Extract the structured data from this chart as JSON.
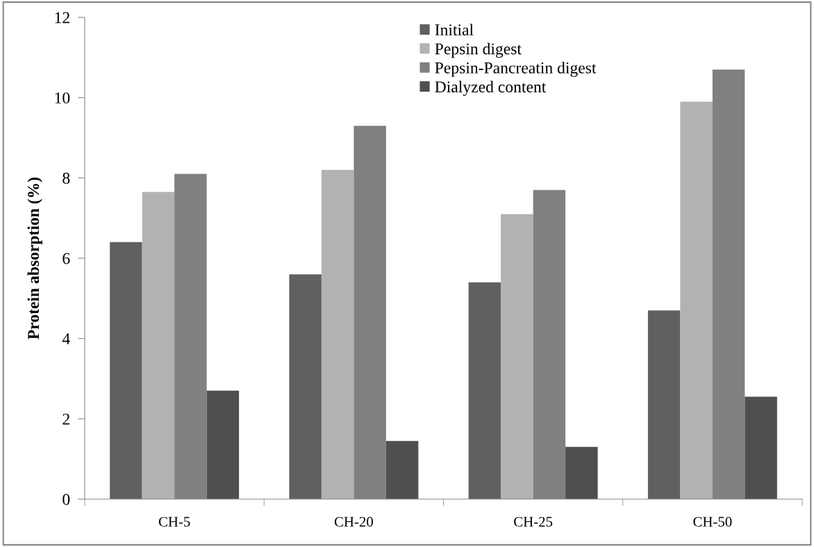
{
  "chart_data": {
    "type": "bar",
    "ylabel": "Protein absorption (%)",
    "categories": [
      "CH-5",
      "CH-20",
      "CH-25",
      "CH-50"
    ],
    "series": [
      {
        "name": "Initial",
        "color": "#606060",
        "values": [
          6.4,
          5.6,
          5.4,
          4.7
        ]
      },
      {
        "name": "Pepsin digest",
        "color": "#b2b2b2",
        "values": [
          7.65,
          8.2,
          7.1,
          9.9
        ]
      },
      {
        "name": "Pepsin-Pancreatin digest",
        "color": "#808080",
        "values": [
          8.1,
          9.3,
          7.7,
          10.7
        ]
      },
      {
        "name": "Dialyzed content",
        "color": "#4f4f4f",
        "values": [
          2.7,
          1.45,
          1.3,
          2.55
        ]
      }
    ],
    "ylim": [
      0,
      12
    ],
    "yticks": [
      0,
      2,
      4,
      6,
      8,
      10,
      12
    ],
    "grid": false,
    "legend": "top"
  }
}
